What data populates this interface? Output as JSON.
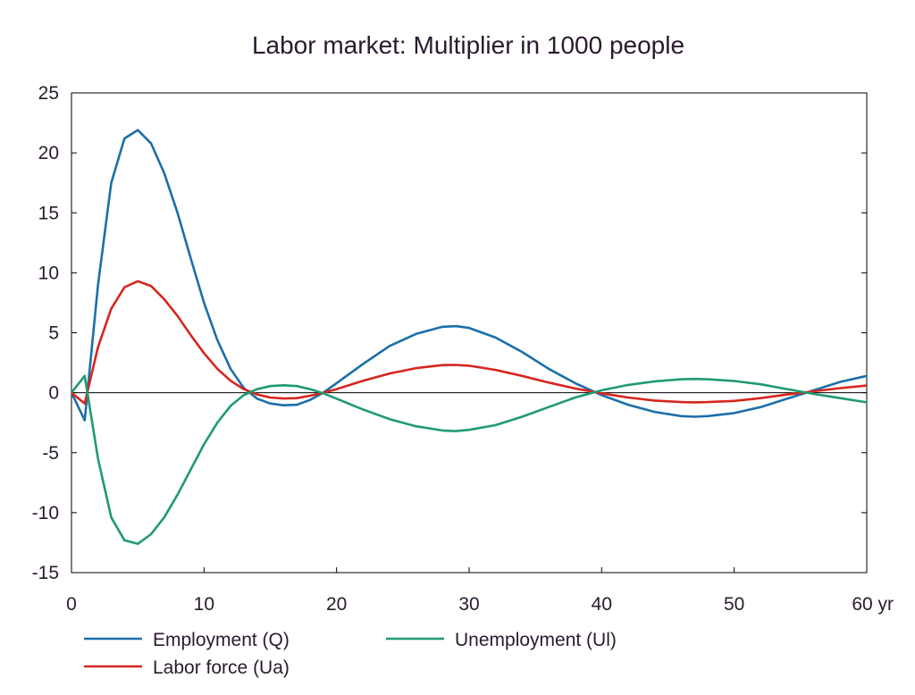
{
  "chart_data": {
    "type": "line",
    "title": "Labor market: Multiplier in 1000 people",
    "xlabel": "",
    "ylabel": "",
    "xlim": [
      0,
      60
    ],
    "ylim": [
      -15,
      25
    ],
    "x_ticks": [
      0,
      10,
      20,
      30,
      40,
      50,
      60
    ],
    "x_tick_labels": [
      "0",
      "10",
      "20",
      "30",
      "40",
      "50",
      "60 yr"
    ],
    "y_ticks": [
      25,
      20,
      15,
      10,
      5,
      0,
      -5,
      -10,
      -15
    ],
    "y_tick_labels": [
      "25",
      "20",
      "15",
      "10",
      "5",
      "0",
      "-5",
      "-10",
      "-15"
    ],
    "grid": false,
    "zero_line": true,
    "legend_position": "bottom",
    "series": [
      {
        "name": "Employment (Q)",
        "color": "#1b6fa8",
        "points": [
          [
            0,
            0
          ],
          [
            1,
            -2.3
          ],
          [
            2,
            9
          ],
          [
            3,
            17.5
          ],
          [
            4,
            21.2
          ],
          [
            5,
            21.9
          ],
          [
            6,
            20.8
          ],
          [
            7,
            18.3
          ],
          [
            8,
            15
          ],
          [
            9,
            11.2
          ],
          [
            10,
            7.5
          ],
          [
            11,
            4.4
          ],
          [
            12,
            2
          ],
          [
            13,
            0.4
          ],
          [
            14,
            -0.5
          ],
          [
            15,
            -0.9
          ],
          [
            16,
            -1.05
          ],
          [
            17,
            -1
          ],
          [
            18,
            -0.6
          ],
          [
            19,
            0
          ],
          [
            20,
            0.8
          ],
          [
            22,
            2.4
          ],
          [
            24,
            3.9
          ],
          [
            26,
            4.9
          ],
          [
            28,
            5.5
          ],
          [
            29,
            5.55
          ],
          [
            30,
            5.4
          ],
          [
            32,
            4.6
          ],
          [
            34,
            3.4
          ],
          [
            36,
            2
          ],
          [
            38,
            0.8
          ],
          [
            40,
            -0.2
          ],
          [
            42,
            -1
          ],
          [
            44,
            -1.6
          ],
          [
            46,
            -1.95
          ],
          [
            47,
            -2
          ],
          [
            48,
            -1.95
          ],
          [
            50,
            -1.7
          ],
          [
            52,
            -1.2
          ],
          [
            54,
            -0.5
          ],
          [
            56,
            0.2
          ],
          [
            58,
            0.9
          ],
          [
            60,
            1.4
          ]
        ]
      },
      {
        "name": "Labor force (Ua)",
        "color": "#d6261e",
        "points": [
          [
            0,
            0
          ],
          [
            1,
            -0.9
          ],
          [
            2,
            3.8
          ],
          [
            3,
            7
          ],
          [
            4,
            8.8
          ],
          [
            5,
            9.3
          ],
          [
            6,
            8.9
          ],
          [
            7,
            7.8
          ],
          [
            8,
            6.4
          ],
          [
            9,
            4.8
          ],
          [
            10,
            3.3
          ],
          [
            11,
            2
          ],
          [
            12,
            1
          ],
          [
            13,
            0.3
          ],
          [
            14,
            -0.15
          ],
          [
            15,
            -0.4
          ],
          [
            16,
            -0.48
          ],
          [
            17,
            -0.45
          ],
          [
            18,
            -0.25
          ],
          [
            19,
            0
          ],
          [
            20,
            0.3
          ],
          [
            22,
            1
          ],
          [
            24,
            1.6
          ],
          [
            26,
            2.05
          ],
          [
            28,
            2.3
          ],
          [
            29,
            2.32
          ],
          [
            30,
            2.25
          ],
          [
            32,
            1.9
          ],
          [
            34,
            1.4
          ],
          [
            36,
            0.85
          ],
          [
            38,
            0.35
          ],
          [
            40,
            -0.05
          ],
          [
            42,
            -0.4
          ],
          [
            44,
            -0.65
          ],
          [
            46,
            -0.78
          ],
          [
            47,
            -0.8
          ],
          [
            48,
            -0.78
          ],
          [
            50,
            -0.68
          ],
          [
            52,
            -0.45
          ],
          [
            54,
            -0.15
          ],
          [
            56,
            0.12
          ],
          [
            58,
            0.38
          ],
          [
            60,
            0.6
          ]
        ]
      },
      {
        "name": "Unemployment (Ul)",
        "color": "#1f9a72",
        "points": [
          [
            0,
            0
          ],
          [
            1,
            1.4
          ],
          [
            2,
            -5.5
          ],
          [
            3,
            -10.4
          ],
          [
            4,
            -12.3
          ],
          [
            5,
            -12.6
          ],
          [
            6,
            -11.8
          ],
          [
            7,
            -10.4
          ],
          [
            8,
            -8.5
          ],
          [
            9,
            -6.4
          ],
          [
            10,
            -4.3
          ],
          [
            11,
            -2.5
          ],
          [
            12,
            -1.1
          ],
          [
            13,
            -0.2
          ],
          [
            14,
            0.3
          ],
          [
            15,
            0.55
          ],
          [
            16,
            0.62
          ],
          [
            17,
            0.55
          ],
          [
            18,
            0.3
          ],
          [
            19,
            -0.05
          ],
          [
            20,
            -0.5
          ],
          [
            22,
            -1.4
          ],
          [
            24,
            -2.2
          ],
          [
            26,
            -2.8
          ],
          [
            28,
            -3.15
          ],
          [
            29,
            -3.2
          ],
          [
            30,
            -3.1
          ],
          [
            32,
            -2.7
          ],
          [
            34,
            -2
          ],
          [
            36,
            -1.2
          ],
          [
            38,
            -0.4
          ],
          [
            40,
            0.2
          ],
          [
            42,
            0.65
          ],
          [
            44,
            0.95
          ],
          [
            46,
            1.12
          ],
          [
            47,
            1.15
          ],
          [
            48,
            1.12
          ],
          [
            50,
            0.98
          ],
          [
            52,
            0.7
          ],
          [
            54,
            0.3
          ],
          [
            56,
            -0.1
          ],
          [
            58,
            -0.45
          ],
          [
            60,
            -0.8
          ]
        ]
      }
    ]
  }
}
